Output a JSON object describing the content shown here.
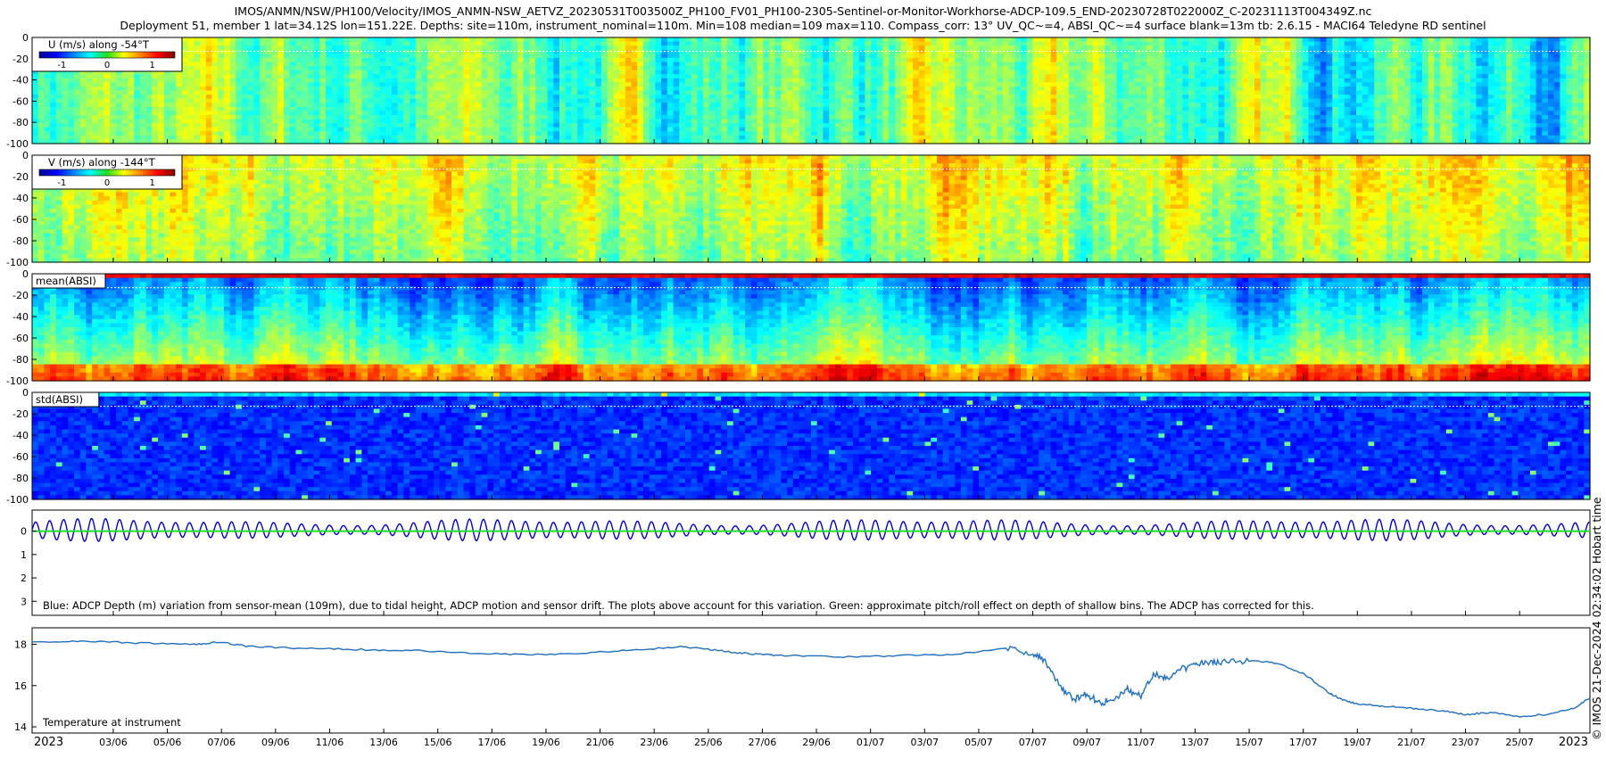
{
  "title_line1": "IMOS/ANMN/NSW/PH100/Velocity/IMOS_ANMN-NSW_AETVZ_20230531T003500Z_PH100_FV01_PH100-2305-Sentinel-or-Monitor-Workhorse-ADCP-109.5_END-20230728T022000Z_C-20231113T004349Z.nc",
  "title_line2": "Deployment 51, member 1 lat=34.12S lon=151.22E. Depths: site=110m, instrument_nominal=110m. Min=108 median=109 max=110. Compass_corr: 13° UV_QC~=4, ABSI_QC~=4 surface blank=13m tb: 2.6.15 - MACI64 Teledyne RD sentinel",
  "credit": "© IMOS 21-Dec-2024 02:34:02 Hobart time",
  "colors": {
    "blue_trace": "#0000cc",
    "green_trace": "#22dd22",
    "temp_trace": "#1f6fbf",
    "surface_line": "#ffffff"
  },
  "chart_data": [
    {
      "type": "heatmap",
      "label": "U (m/s) along -54°T",
      "yticks": [
        0,
        -20,
        -40,
        -60,
        -80,
        -100
      ],
      "ylim": [
        -100,
        0
      ],
      "colorbar": {
        "ticks": [
          "-1",
          "0",
          "1"
        ],
        "range": [
          -1.5,
          1.5
        ],
        "colormap": "jet"
      },
      "surface_blank_depth": -13
    },
    {
      "type": "heatmap",
      "label": "V (m/s) along -144°T",
      "yticks": [
        0,
        -20,
        -40,
        -60,
        -80,
        -100
      ],
      "ylim": [
        -100,
        0
      ],
      "colorbar": {
        "ticks": [
          "-1",
          "0",
          "1"
        ],
        "range": [
          -1.5,
          1.5
        ],
        "colormap": "jet"
      },
      "surface_blank_depth": -13
    },
    {
      "type": "heatmap",
      "label": "mean(ABSI)",
      "yticks": [
        0,
        -20,
        -40,
        -60,
        -80,
        -100
      ],
      "ylim": [
        -100,
        0
      ],
      "colormap": "jet",
      "surface_blank_depth": -13
    },
    {
      "type": "heatmap",
      "label": "std(ABSI)",
      "yticks": [
        0,
        -20,
        -40,
        -60,
        -80,
        -100
      ],
      "ylim": [
        -100,
        0
      ],
      "colormap": "jet",
      "surface_blank_depth": -13
    },
    {
      "type": "line",
      "yticks": [
        "0",
        "1",
        "2",
        "3"
      ],
      "ylim": [
        3.6,
        -0.9
      ],
      "series": [
        {
          "name": "ADCP depth variation",
          "color": "#0000cc",
          "amplitude_m": 0.45,
          "tidal_period_h": 12.42
        },
        {
          "name": "pitch/roll effect",
          "color": "#22dd22",
          "value_m": 0.0
        }
      ],
      "annotation": "Blue: ADCP Depth (m) variation from sensor-mean (109m), due to tidal height, ADCP motion and sensor drift. The plots above account for this variation. Green: approximate pitch/roll effect on depth of shallow bins. The ADCP has corrected for this."
    },
    {
      "type": "line",
      "yticks": [
        "14",
        "16",
        "18"
      ],
      "ylim": [
        13.7,
        18.8
      ],
      "label": "Temperature at instrument",
      "series": [
        {
          "name": "Temperature",
          "x_days": [
            0,
            2,
            4,
            6,
            7,
            8,
            10,
            12,
            14,
            16,
            18,
            20,
            22,
            24,
            25,
            26,
            27,
            28,
            30,
            32,
            34,
            36,
            37,
            37.5,
            38,
            38.5,
            39,
            39.5,
            40,
            40.5,
            41,
            41.5,
            42,
            42.5,
            43,
            43.5,
            44,
            45,
            46,
            47,
            48,
            48.5,
            49,
            50,
            51,
            52,
            53,
            54,
            55,
            56,
            57,
            57.6
          ],
          "values": [
            18.1,
            18.15,
            18.05,
            18.0,
            18.1,
            17.9,
            17.8,
            17.75,
            17.7,
            17.6,
            17.5,
            17.55,
            17.7,
            17.9,
            17.75,
            17.6,
            17.5,
            17.45,
            17.4,
            17.45,
            17.5,
            17.8,
            17.6,
            17.1,
            16.0,
            15.3,
            15.6,
            15.1,
            15.4,
            15.8,
            15.5,
            16.6,
            16.3,
            16.8,
            17.0,
            17.1,
            17.15,
            17.2,
            17.1,
            16.6,
            15.6,
            15.3,
            15.1,
            15.0,
            14.9,
            14.8,
            14.6,
            14.7,
            14.5,
            14.6,
            14.9,
            15.4
          ]
        }
      ]
    }
  ],
  "x_axis": {
    "start_day": 0,
    "end_day": 57.6,
    "ticks": [
      {
        "day": 0,
        "label": "2023"
      },
      {
        "day": 3,
        "label": "03/06"
      },
      {
        "day": 5,
        "label": "05/06"
      },
      {
        "day": 7,
        "label": "07/06"
      },
      {
        "day": 9,
        "label": "09/06"
      },
      {
        "day": 11,
        "label": "11/06"
      },
      {
        "day": 13,
        "label": "13/06"
      },
      {
        "day": 15,
        "label": "15/06"
      },
      {
        "day": 17,
        "label": "17/06"
      },
      {
        "day": 19,
        "label": "19/06"
      },
      {
        "day": 21,
        "label": "21/06"
      },
      {
        "day": 23,
        "label": "23/06"
      },
      {
        "day": 25,
        "label": "25/06"
      },
      {
        "day": 27,
        "label": "27/06"
      },
      {
        "day": 29,
        "label": "29/06"
      },
      {
        "day": 31,
        "label": "01/07"
      },
      {
        "day": 33,
        "label": "03/07"
      },
      {
        "day": 35,
        "label": "05/07"
      },
      {
        "day": 37,
        "label": "07/07"
      },
      {
        "day": 39,
        "label": "09/07"
      },
      {
        "day": 41,
        "label": "11/07"
      },
      {
        "day": 43,
        "label": "13/07"
      },
      {
        "day": 45,
        "label": "15/07"
      },
      {
        "day": 47,
        "label": "17/07"
      },
      {
        "day": 49,
        "label": "19/07"
      },
      {
        "day": 51,
        "label": "21/07"
      },
      {
        "day": 53,
        "label": "23/07"
      },
      {
        "day": 55,
        "label": "25/07"
      },
      {
        "day": 57.6,
        "label": "2023"
      }
    ]
  }
}
